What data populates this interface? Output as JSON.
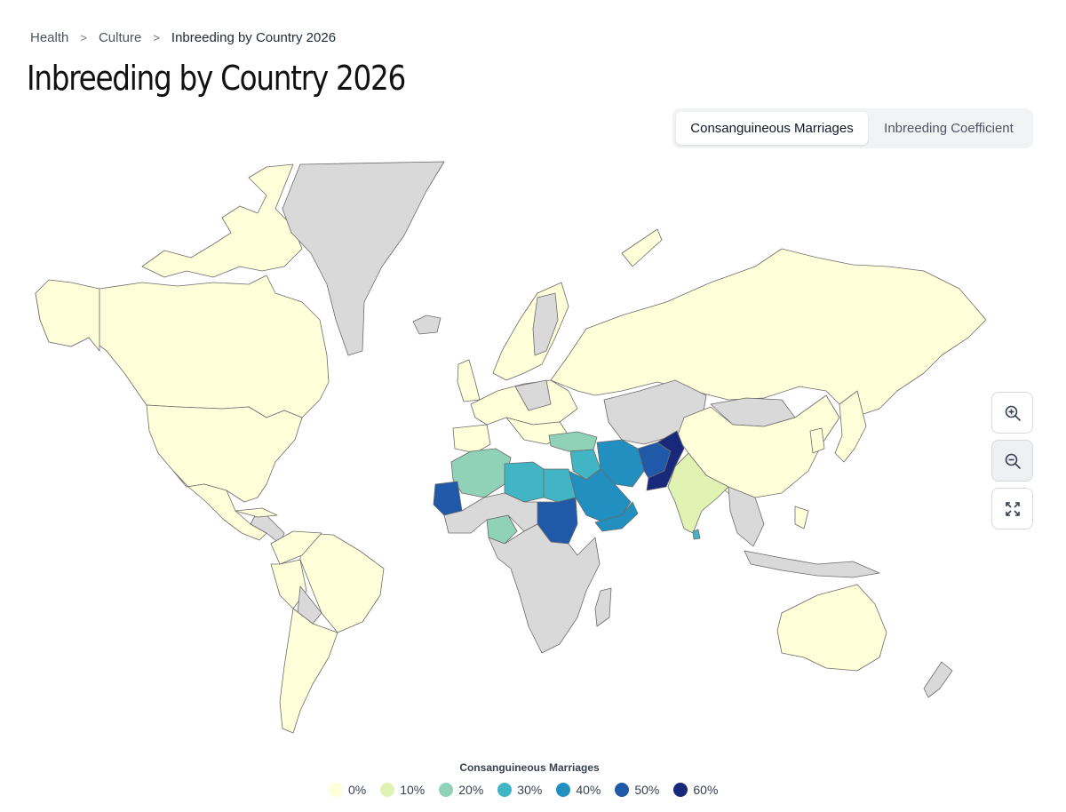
{
  "breadcrumb": {
    "items": [
      "Health",
      "Culture"
    ],
    "current": "Inbreeding by Country 2026",
    "separator": ">"
  },
  "page_title": "Inbreeding by Country 2026",
  "toggle": {
    "active": "Consanguineous Marriages",
    "inactive": "Inbreeding Coefficient"
  },
  "map_controls": {
    "zoom_in_icon": "zoom-in-icon",
    "zoom_out_icon": "zoom-out-icon",
    "reset_icon": "expand-icon"
  },
  "legend": {
    "title": "Consanguineous Marriages",
    "items": [
      {
        "label": "0%",
        "color": "#ffffd9"
      },
      {
        "label": "10%",
        "color": "#e1f3b3"
      },
      {
        "label": "20%",
        "color": "#8fd2b8"
      },
      {
        "label": "30%",
        "color": "#41b5c4"
      },
      {
        "label": "40%",
        "color": "#2190c0"
      },
      {
        "label": "50%",
        "color": "#2059a8"
      },
      {
        "label": "60%",
        "color": "#18287a"
      }
    ]
  },
  "colors": {
    "no_data": "#d9d9d9",
    "border": "#6b6b6b",
    "background": "#ffffff"
  }
}
